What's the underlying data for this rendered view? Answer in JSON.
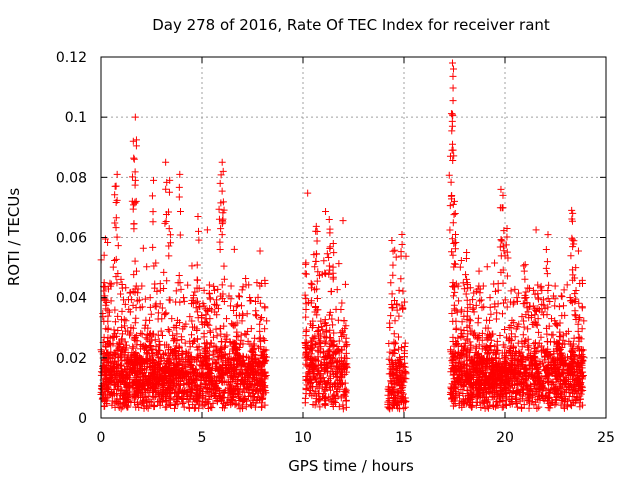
{
  "chart_data": {
    "type": "scatter",
    "title": "Day 278 of 2016, Rate Of TEC Index for receiver rant",
    "xlabel": "GPS time / hours",
    "ylabel": "ROTI / TECUs",
    "xlim": [
      0,
      25
    ],
    "ylim": [
      0,
      0.12
    ],
    "xticks": [
      0,
      5,
      10,
      15,
      20,
      25
    ],
    "xtick_labels": [
      "0",
      "5",
      "10",
      "15",
      "20",
      "25"
    ],
    "yticks": [
      0,
      0.02,
      0.04,
      0.06,
      0.08,
      0.1,
      0.12
    ],
    "ytick_labels": [
      "0",
      "0.02",
      "0.04",
      "0.06",
      "0.08",
      "0.1",
      "0.12"
    ],
    "grid": true,
    "marker": "+",
    "color": "#ff0000",
    "series": [
      {
        "name": "ROTI",
        "segments": [
          {
            "x_range": [
              0.0,
              8.2
            ],
            "median": 0.014,
            "spread": 0.012,
            "points_per_hour": 240
          },
          {
            "x_range": [
              10.1,
              12.2
            ],
            "median": 0.016,
            "spread": 0.014,
            "points_per_hour": 200
          },
          {
            "x_range": [
              14.2,
              15.1
            ],
            "median": 0.012,
            "spread": 0.012,
            "points_per_hour": 200
          },
          {
            "x_range": [
              17.3,
              23.9
            ],
            "median": 0.014,
            "spread": 0.012,
            "points_per_hour": 240
          }
        ],
        "peaks": [
          {
            "x": 1.7,
            "y": 0.1
          },
          {
            "x": 1.6,
            "y": 0.092
          },
          {
            "x": 1.65,
            "y": 0.086
          },
          {
            "x": 0.8,
            "y": 0.081
          },
          {
            "x": 0.7,
            "y": 0.077
          },
          {
            "x": 3.2,
            "y": 0.085
          },
          {
            "x": 3.4,
            "y": 0.079
          },
          {
            "x": 3.9,
            "y": 0.081
          },
          {
            "x": 2.6,
            "y": 0.079
          },
          {
            "x": 6.0,
            "y": 0.085
          },
          {
            "x": 6.05,
            "y": 0.082
          },
          {
            "x": 5.9,
            "y": 0.078
          },
          {
            "x": 4.8,
            "y": 0.067
          },
          {
            "x": 11.3,
            "y": 0.066
          },
          {
            "x": 10.7,
            "y": 0.062
          },
          {
            "x": 11.5,
            "y": 0.058
          },
          {
            "x": 14.4,
            "y": 0.059
          },
          {
            "x": 14.9,
            "y": 0.061
          },
          {
            "x": 17.4,
            "y": 0.118
          },
          {
            "x": 17.45,
            "y": 0.116
          },
          {
            "x": 17.4,
            "y": 0.101
          },
          {
            "x": 17.3,
            "y": 0.087
          },
          {
            "x": 17.5,
            "y": 0.072
          },
          {
            "x": 17.55,
            "y": 0.061
          },
          {
            "x": 19.8,
            "y": 0.076
          },
          {
            "x": 19.9,
            "y": 0.074
          },
          {
            "x": 20.1,
            "y": 0.063
          },
          {
            "x": 18.1,
            "y": 0.055
          },
          {
            "x": 23.3,
            "y": 0.069
          },
          {
            "x": 23.35,
            "y": 0.068
          },
          {
            "x": 22.1,
            "y": 0.052
          },
          {
            "x": 21.0,
            "y": 0.051
          },
          {
            "x": 23.5,
            "y": 0.05
          }
        ]
      }
    ]
  }
}
